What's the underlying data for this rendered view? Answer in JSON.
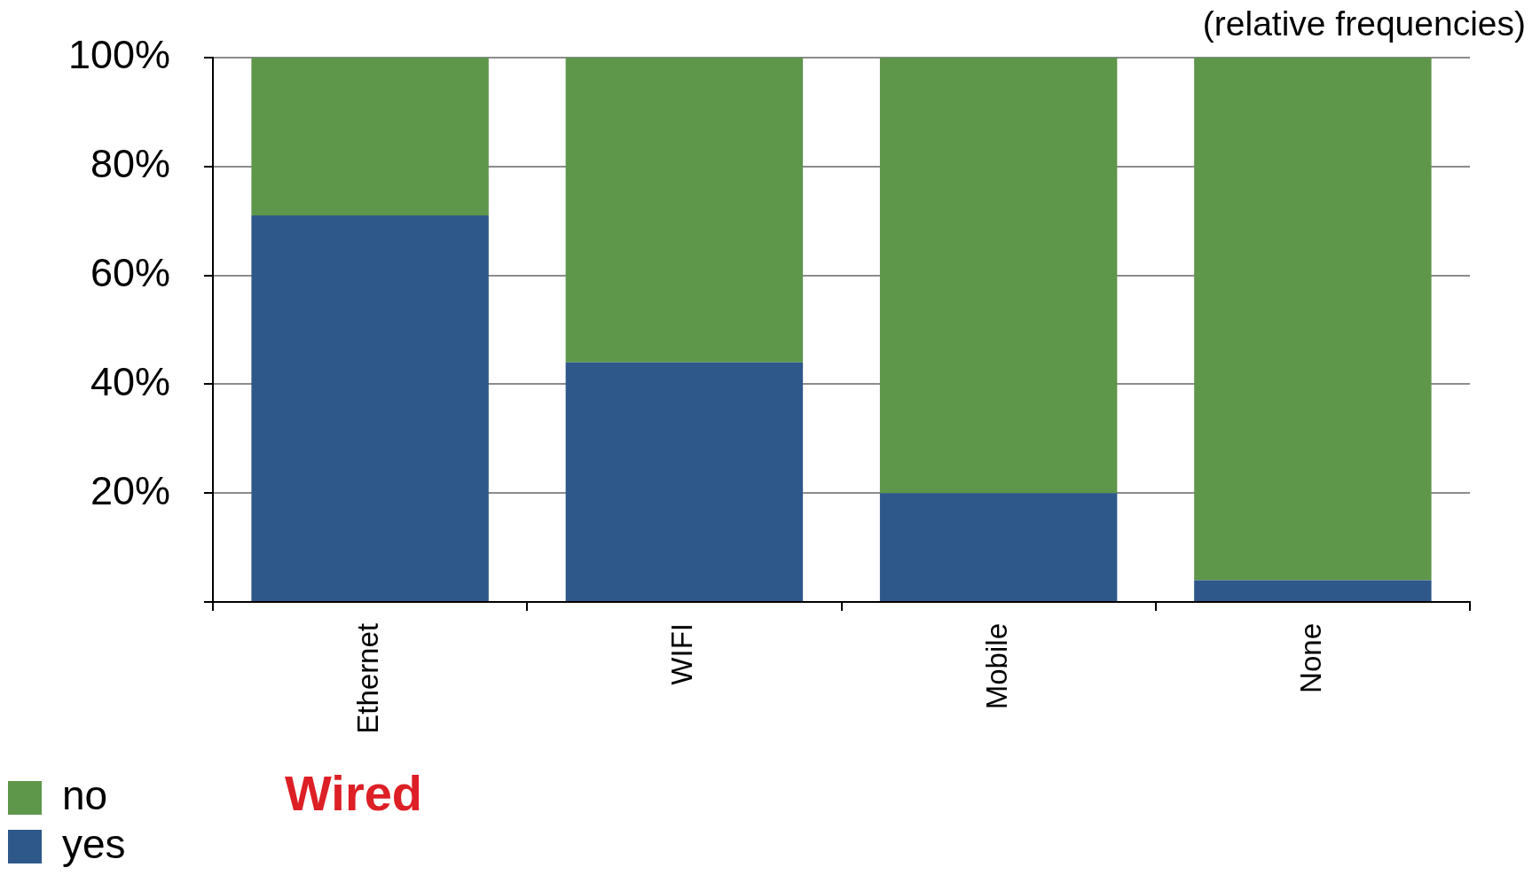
{
  "chart_data": {
    "type": "bar",
    "title": "Wired",
    "subtitle": "(relative frequencies)",
    "categories": [
      "Ethernet",
      "WIFI",
      "Mobile",
      "None"
    ],
    "stacked": true,
    "series": [
      {
        "name": "yes",
        "color": "#2e588a",
        "values": [
          71,
          44,
          20,
          4
        ]
      },
      {
        "name": "no",
        "color": "#5e964a",
        "values": [
          29,
          56,
          80,
          96
        ]
      }
    ],
    "ylim": [
      0,
      100
    ],
    "yticks": [
      {
        "value": 0,
        "label": null
      },
      {
        "value": 20,
        "label": "20%"
      },
      {
        "value": 40,
        "label": "40%"
      },
      {
        "value": 60,
        "label": "60%"
      },
      {
        "value": 80,
        "label": "80%"
      },
      {
        "value": 100,
        "label": "100%"
      }
    ],
    "grid": "y",
    "legend": "bottom left"
  }
}
